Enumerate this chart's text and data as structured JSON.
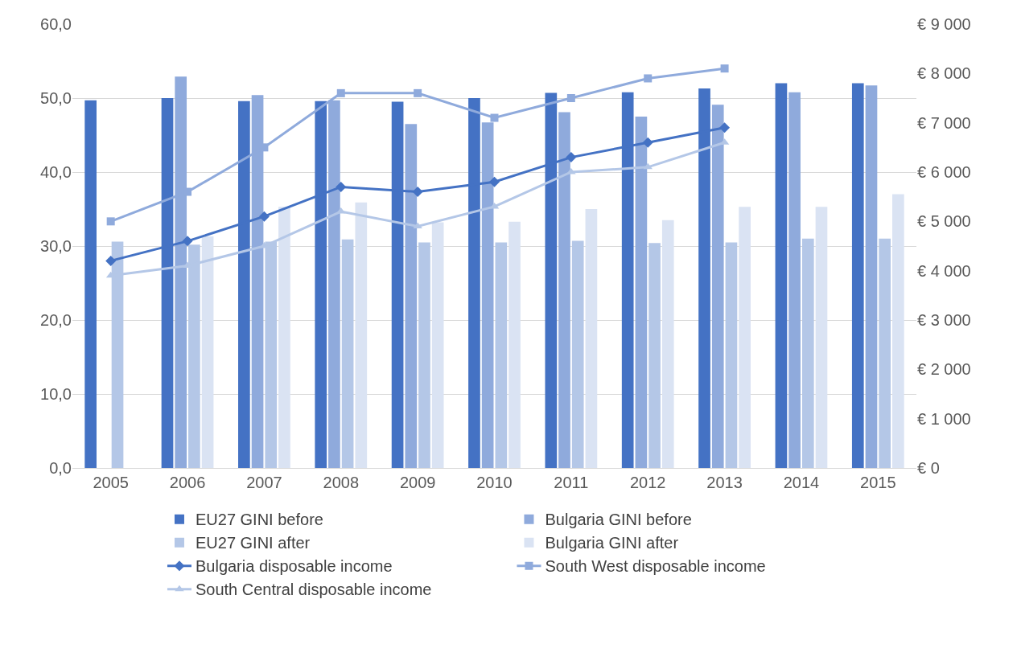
{
  "chart_data": {
    "type": "bar",
    "categories": [
      "2005",
      "2006",
      "2007",
      "2008",
      "2009",
      "2010",
      "2011",
      "2012",
      "2013",
      "2014",
      "2015"
    ],
    "series": [
      {
        "name": "EU27 GINI before",
        "color": "#4472c4",
        "values": [
          49.7,
          50.0,
          49.6,
          49.6,
          49.5,
          50.0,
          50.7,
          50.8,
          51.3,
          52.0,
          52.0
        ]
      },
      {
        "name": "Bulgaria GINI before",
        "color": "#8faadc",
        "values": [
          null,
          52.9,
          50.4,
          49.7,
          46.5,
          46.7,
          48.1,
          47.5,
          49.1,
          50.8,
          51.7
        ]
      },
      {
        "name": "EU27 GINI after",
        "color": "#b4c7e7",
        "values": [
          30.6,
          30.2,
          30.6,
          30.9,
          30.5,
          30.5,
          30.7,
          30.4,
          30.5,
          31.0,
          31.0
        ]
      },
      {
        "name": "Bulgaria GINI after",
        "color": "#dae3f3",
        "values": [
          null,
          31.3,
          35.3,
          35.9,
          33.2,
          33.3,
          35.0,
          33.5,
          35.3,
          35.3,
          37.0
        ]
      },
      {
        "name": "Bulgaria disposable income",
        "type": "line",
        "axis": "y2",
        "marker": "diamond",
        "color": "#4472c4",
        "values": [
          4200,
          4600,
          5100,
          5700,
          5600,
          5800,
          6300,
          6600,
          6900,
          null,
          null
        ]
      },
      {
        "name": "South West disposable income",
        "type": "line",
        "axis": "y2",
        "marker": "square",
        "color": "#8faadc",
        "values": [
          5000,
          5600,
          6500,
          7600,
          7600,
          7100,
          7500,
          7900,
          8100,
          null,
          null
        ]
      },
      {
        "name": "South Central disposable income",
        "type": "line",
        "axis": "y2",
        "marker": "triangle",
        "color": "#b4c7e7",
        "values": [
          3900,
          4100,
          4500,
          5200,
          4900,
          5300,
          6000,
          6100,
          6600,
          null,
          null
        ]
      }
    ],
    "ylim": [
      0,
      60
    ],
    "yticks": [
      {
        "value": 0,
        "label": "0,0"
      },
      {
        "value": 10,
        "label": "10,0"
      },
      {
        "value": 20,
        "label": "20,0"
      },
      {
        "value": 30,
        "label": "30,0"
      },
      {
        "value": 40,
        "label": "40,0"
      },
      {
        "value": 50,
        "label": "50,0"
      },
      {
        "value": 60,
        "label": "60,0"
      }
    ],
    "y2lim": [
      0,
      9000
    ],
    "y2ticks": [
      {
        "value": 0,
        "label": "€ 0"
      },
      {
        "value": 1000,
        "label": "€ 1 000"
      },
      {
        "value": 2000,
        "label": "€ 2 000"
      },
      {
        "value": 3000,
        "label": "€ 3 000"
      },
      {
        "value": 4000,
        "label": "€ 4 000"
      },
      {
        "value": 5000,
        "label": "€ 5 000"
      },
      {
        "value": 6000,
        "label": "€ 6 000"
      },
      {
        "value": 7000,
        "label": "€ 7 000"
      },
      {
        "value": 8000,
        "label": "€ 8 000"
      },
      {
        "value": 9000,
        "label": "€ 9 000"
      }
    ],
    "grid": "y",
    "legend": "bottom",
    "line_style": "solid"
  }
}
